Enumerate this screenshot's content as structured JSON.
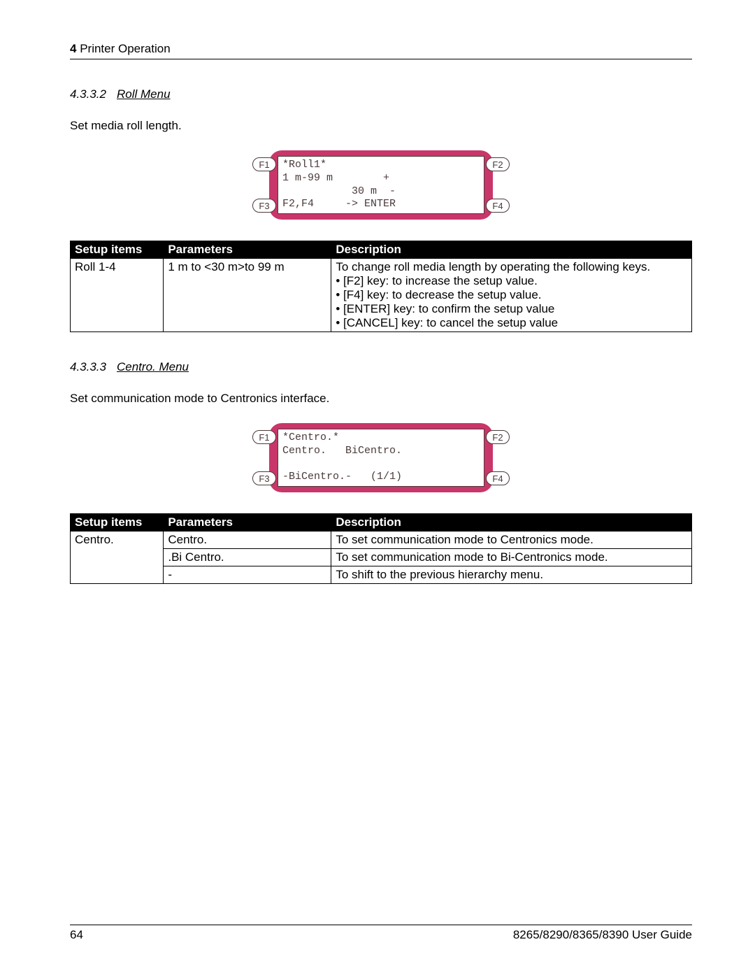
{
  "header": {
    "chapter_num": "4",
    "chapter_title": " Printer Operation"
  },
  "section1": {
    "num": "4.3.3.2",
    "title": "Roll Menu",
    "intro": "Set media roll length.",
    "lcd": "*Roll1*\n1 m-99 m        +\n           30 m  -\nF2,F4     -> ENTER",
    "table": {
      "headers": [
        "Setup items",
        "Parameters",
        "Description"
      ],
      "rows": [
        {
          "setup": "Roll 1-4",
          "param": "1 m to <30 m>to 99 m",
          "desc": "To change roll media length by operating the following keys.\n• [F2] key: to increase the setup value.\n• [F4] key: to decrease the setup value.\n• [ENTER] key: to confirm the setup value\n• [CANCEL] key: to cancel the setup value"
        }
      ]
    }
  },
  "section2": {
    "num": "4.3.3.3",
    "title": "Centro. Menu",
    "intro": "Set communication mode to Centronics interface.",
    "lcd": "*Centro.*\nCentro.   BiCentro.\n\n-BiCentro.-   (1/1)",
    "table": {
      "headers": [
        "Setup items",
        "Parameters",
        "Description"
      ],
      "rows": [
        {
          "setup": "Centro.",
          "param": "Centro.",
          "desc": "To set communication mode to Centronics mode."
        },
        {
          "setup": "",
          "param": ".Bi Centro.",
          "desc": "To set communication mode to Bi-Centronics mode."
        },
        {
          "setup": "",
          "param": "-",
          "desc": "To shift to the previous hierarchy menu."
        }
      ]
    }
  },
  "fkeys": {
    "f1": "F1",
    "f2": "F2",
    "f3": "F3",
    "f4": "F4"
  },
  "footer": {
    "page_num": "64",
    "doc_title": "8265/8290/8365/8390 User Guide"
  },
  "colors": {
    "panel_body": "#c93669",
    "lcd_text": "#4a3a3a",
    "table_header_bg": "#000000",
    "table_header_fg": "#ffffff"
  }
}
